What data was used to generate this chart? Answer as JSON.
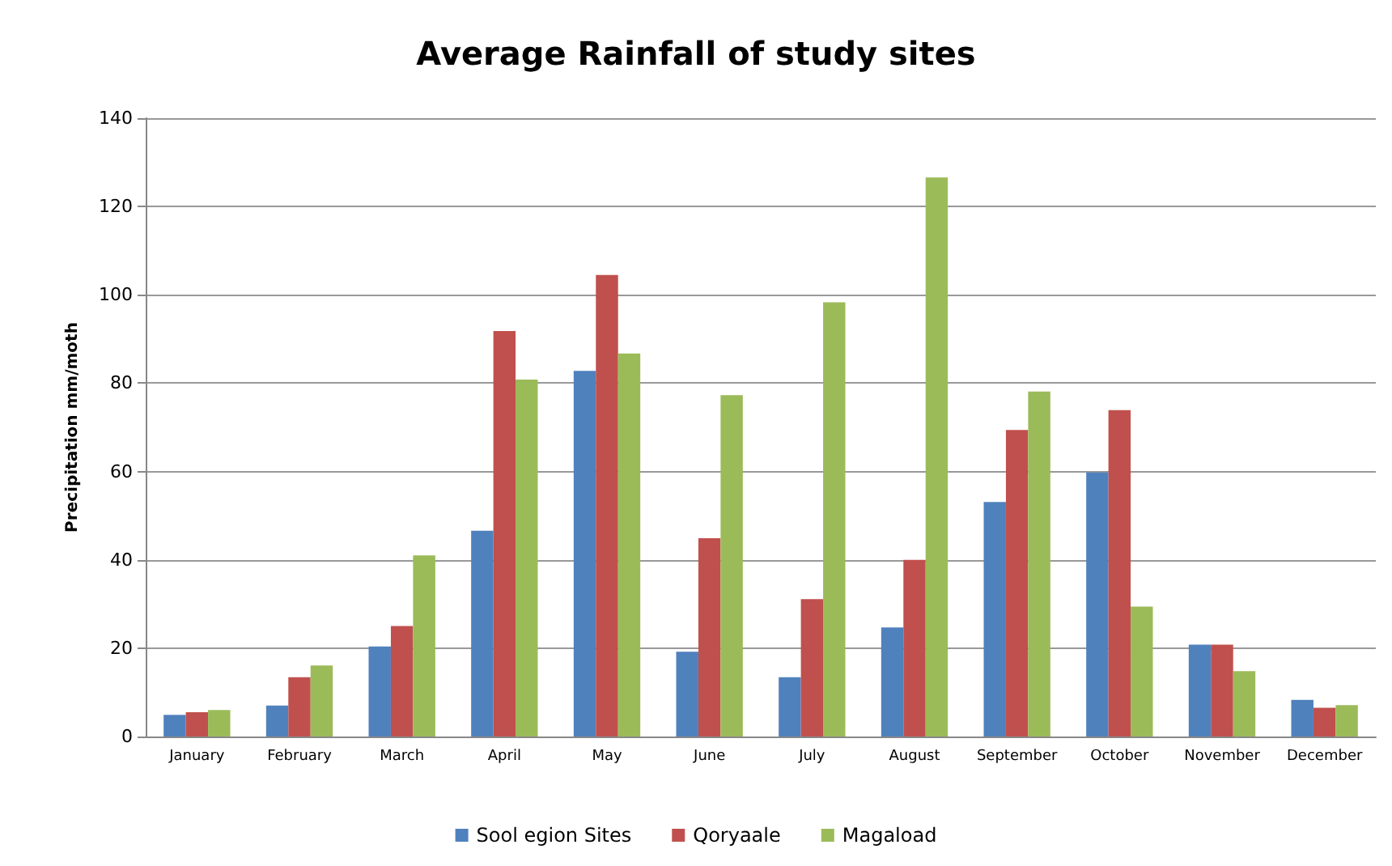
{
  "chart_data": {
    "type": "bar",
    "title": "Average Rainfall of study sites",
    "ylabel": "Precipitation mm/moth",
    "categories": [
      "January",
      "February",
      "March",
      "April",
      "May",
      "June",
      "July",
      "August",
      "September",
      "October",
      "November",
      "December"
    ],
    "series": [
      {
        "name": "Sool egion Sites",
        "color": "#4f81bd",
        "values": [
          4.9,
          7,
          20.4,
          46.6,
          82.8,
          19.2,
          13.4,
          24.7,
          53.1,
          59.8,
          20.8,
          8.3
        ]
      },
      {
        "name": "Qoryaale",
        "color": "#c0504d",
        "values": [
          5.5,
          13.4,
          25,
          91.8,
          104.5,
          44.9,
          31.1,
          40,
          69.4,
          73.9,
          20.8,
          6.5
        ]
      },
      {
        "name": "Magaload",
        "color": "#9bbb59",
        "values": [
          6,
          16.1,
          41,
          80.8,
          86.7,
          77.3,
          98.3,
          126.6,
          78.1,
          29.4,
          14.8,
          7.1
        ]
      }
    ],
    "ylim": [
      0,
      140
    ],
    "yticks": [
      0,
      20,
      40,
      60,
      80,
      100,
      120,
      140
    ],
    "grid": "y",
    "legend": "bottom"
  }
}
